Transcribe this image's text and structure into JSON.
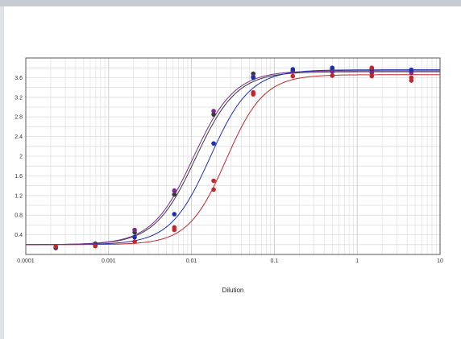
{
  "chart_data": {
    "type": "scatter",
    "xlabel": "Dilution",
    "ylabel": "",
    "x_scale": "log",
    "xlim": [
      0.0001,
      10
    ],
    "ylim": [
      0,
      4
    ],
    "x_ticks": [
      "0.0001",
      "0.001",
      "0.01",
      "0.1",
      "1",
      "10"
    ],
    "y_ticks": [
      "0.4",
      "0.8",
      "1.2",
      "1.6",
      "2",
      "2.4",
      "2.8",
      "3.2",
      "3.6"
    ],
    "grid": true,
    "series": [
      {
        "color": "#3a3a3a",
        "curve": {
          "bottom": 0.2,
          "top": 3.72,
          "ec50": 0.0112,
          "hill": 1.75
        },
        "points": [
          {
            "x": 0.00023,
            "y": 0.15
          },
          {
            "x": 0.00069,
            "y": 0.22
          },
          {
            "x": 0.00206,
            "y": 0.45
          },
          {
            "x": 0.0062,
            "y": 1.22
          },
          {
            "x": 0.0185,
            "y": 2.85
          },
          {
            "x": 0.0556,
            "y": 3.68
          },
          {
            "x": 0.167,
            "y": 3.74
          },
          {
            "x": 0.5,
            "y": 3.78
          },
          {
            "x": 1.5,
            "y": 3.76
          },
          {
            "x": 4.5,
            "y": 3.74
          }
        ]
      },
      {
        "color": "#7a2a8c",
        "curve": {
          "bottom": 0.2,
          "top": 3.74,
          "ec50": 0.0105,
          "hill": 1.75
        },
        "points": [
          {
            "x": 0.00023,
            "y": 0.13
          },
          {
            "x": 0.00069,
            "y": 0.2
          },
          {
            "x": 0.00206,
            "y": 0.5
          },
          {
            "x": 0.0062,
            "y": 1.3
          },
          {
            "x": 0.0185,
            "y": 2.92
          },
          {
            "x": 0.0556,
            "y": 3.62
          },
          {
            "x": 0.167,
            "y": 3.72
          },
          {
            "x": 0.5,
            "y": 3.72
          },
          {
            "x": 1.5,
            "y": 3.7
          },
          {
            "x": 4.5,
            "y": 3.7
          }
        ]
      },
      {
        "color": "#1c2fb0",
        "curve": {
          "bottom": 0.2,
          "top": 3.76,
          "ec50": 0.0168,
          "hill": 1.8
        },
        "points": [
          {
            "x": 0.00023,
            "y": 0.14
          },
          {
            "x": 0.00069,
            "y": 0.18
          },
          {
            "x": 0.00206,
            "y": 0.35
          },
          {
            "x": 0.0062,
            "y": 0.82
          },
          {
            "x": 0.0185,
            "y": 2.26
          },
          {
            "x": 0.0556,
            "y": 3.6
          },
          {
            "x": 0.167,
            "y": 3.77
          },
          {
            "x": 0.5,
            "y": 3.8
          },
          {
            "x": 1.5,
            "y": 3.79
          },
          {
            "x": 4.5,
            "y": 3.76
          }
        ]
      },
      {
        "color": "#c0282c",
        "curve": {
          "bottom": 0.2,
          "top": 3.66,
          "ec50": 0.0262,
          "hill": 1.9
        },
        "points": [
          {
            "x": 0.00023,
            "y": 0.16
          },
          {
            "x": 0.00069,
            "y": 0.17
          },
          {
            "x": 0.00206,
            "y": 0.26
          },
          {
            "x": 0.0062,
            "y": 0.55
          },
          {
            "x": 0.0185,
            "y": 1.32
          },
          {
            "x": 0.0556,
            "y": 3.26
          },
          {
            "x": 0.167,
            "y": 3.63
          },
          {
            "x": 0.5,
            "y": 3.64
          },
          {
            "x": 1.5,
            "y": 3.63
          },
          {
            "x": 4.5,
            "y": 3.6
          }
        ]
      },
      {
        "color": "#c0282c",
        "curve": null,
        "points": [
          {
            "x": 0.0062,
            "y": 0.5
          },
          {
            "x": 0.0185,
            "y": 1.5
          },
          {
            "x": 0.0556,
            "y": 3.3
          },
          {
            "x": 1.5,
            "y": 3.8
          },
          {
            "x": 4.5,
            "y": 3.54
          }
        ]
      }
    ]
  }
}
